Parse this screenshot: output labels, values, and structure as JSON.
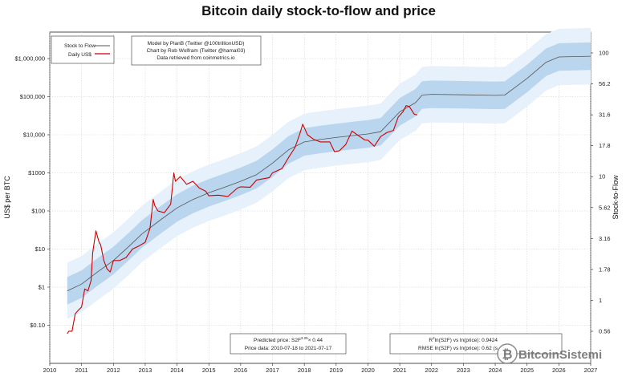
{
  "chart_data": {
    "type": "line",
    "title": "Bitcoin daily stock-to-flow and price",
    "xlabel": "",
    "ylabel": "US$ per BTC",
    "y2label": "Stock-to-Flow",
    "x_ticks": [
      "2010",
      "2011",
      "2012",
      "2013",
      "2014",
      "2015",
      "2016",
      "2017",
      "2018",
      "2019",
      "2020",
      "2021",
      "2022",
      "2023",
      "2024",
      "2025",
      "2026",
      "2027"
    ],
    "xlim": [
      2010,
      2027
    ],
    "y_scale": "log",
    "ylim": [
      0.03,
      10000000
    ],
    "y_ticks": [
      {
        "v": 0.1,
        "label": "$0.10"
      },
      {
        "v": 1,
        "label": "$1"
      },
      {
        "v": 10,
        "label": "$10"
      },
      {
        "v": 100,
        "label": "$100"
      },
      {
        "v": 1000,
        "label": "$1000"
      },
      {
        "v": 10000,
        "label": "$10,000"
      },
      {
        "v": 100000,
        "label": "$100,000"
      },
      {
        "v": 1000000,
        "label": "$1,000,000"
      }
    ],
    "y2_ticks": [
      "0.56",
      "1",
      "1.78",
      "3.16",
      "5.62",
      "10",
      "17.8",
      "31.6",
      "56.2",
      "100"
    ],
    "grid": true,
    "legend_position": "top-left",
    "series": [
      {
        "name": "Stock to Flow",
        "color": "#555555",
        "x": [
          2010.55,
          2011.0,
          2011.5,
          2012.0,
          2012.5,
          2012.9,
          2013.5,
          2014.0,
          2014.5,
          2015.0,
          2015.5,
          2016.0,
          2016.5,
          2017.0,
          2017.5,
          2018.0,
          2018.5,
          2019.0,
          2019.5,
          2020.0,
          2020.4,
          2021.0,
          2021.5,
          2021.7,
          2022.0,
          2023.0,
          2024.0,
          2024.3,
          2025.0,
          2025.6,
          2026.0,
          2027.0
        ],
        "y": [
          0.8,
          1.2,
          2.5,
          5,
          12,
          25,
          60,
          120,
          200,
          300,
          420,
          600,
          900,
          1800,
          4000,
          6500,
          7500,
          8500,
          9500,
          10500,
          12000,
          40000,
          70000,
          110000,
          115000,
          112000,
          108000,
          110000,
          300000,
          800000,
          1100000,
          1150000
        ]
      },
      {
        "name": "Daily US$",
        "color": "#cc0000",
        "x": [
          2010.55,
          2010.6,
          2010.7,
          2010.8,
          2010.9,
          2011.0,
          2011.1,
          2011.2,
          2011.3,
          2011.35,
          2011.45,
          2011.55,
          2011.6,
          2011.7,
          2011.8,
          2011.9,
          2012.0,
          2012.2,
          2012.4,
          2012.6,
          2012.8,
          2013.0,
          2013.15,
          2013.25,
          2013.3,
          2013.4,
          2013.6,
          2013.8,
          2013.9,
          2013.95,
          2014.1,
          2014.3,
          2014.5,
          2014.7,
          2014.9,
          2015.0,
          2015.3,
          2015.6,
          2015.9,
          2016.0,
          2016.3,
          2016.5,
          2016.9,
          2017.0,
          2017.3,
          2017.5,
          2017.7,
          2017.85,
          2017.95,
          2018.1,
          2018.3,
          2018.5,
          2018.8,
          2018.95,
          2019.1,
          2019.3,
          2019.5,
          2019.7,
          2019.9,
          2020.0,
          2020.2,
          2020.4,
          2020.6,
          2020.8,
          2020.95,
          2021.1,
          2021.2,
          2021.3,
          2021.45,
          2021.55
        ],
        "y": [
          0.06,
          0.07,
          0.07,
          0.2,
          0.25,
          0.3,
          0.9,
          0.8,
          1.5,
          8,
          30,
          15,
          13,
          5,
          3,
          2.5,
          5,
          5,
          6,
          10,
          12,
          15,
          35,
          200,
          140,
          100,
          90,
          150,
          1000,
          600,
          800,
          500,
          600,
          400,
          330,
          250,
          260,
          240,
          400,
          430,
          420,
          650,
          750,
          1000,
          1300,
          2500,
          4500,
          10000,
          19000,
          10000,
          7500,
          6500,
          6500,
          3600,
          3800,
          5500,
          12500,
          9500,
          7300,
          7200,
          5000,
          9000,
          11500,
          13000,
          29000,
          40000,
          58000,
          55000,
          35000,
          33000
        ]
      }
    ],
    "legend": [
      {
        "label": "Stock to Flow",
        "color": "#555555"
      },
      {
        "label": "Daily US$",
        "color": "#cc0000"
      }
    ]
  },
  "credits": {
    "line1": "Model by PlanB (Twitter @100trillionUSD)",
    "line2": "Chart by Rob Wolfram (Twitter @hamal03)",
    "line3": "Data retrieved from coinmetrics.io"
  },
  "stats_left": {
    "line1": "Predicted price: S2F",
    "line1_sup": "3.25",
    "line1_tail": "× 0.44",
    "line2": "Price data: 2010-07-18 to 2021-07-17"
  },
  "stats_right": {
    "line1_r": "R",
    "line1_sup": "2",
    "line1_tail": "ln(S2F) vs ln(price): 0.9424",
    "line2": "RMSE ln(S2F) vs ln(price): 0.62 (s"
  },
  "watermark": {
    "text": "BitcoinSistemi",
    "symbol": "₿"
  }
}
